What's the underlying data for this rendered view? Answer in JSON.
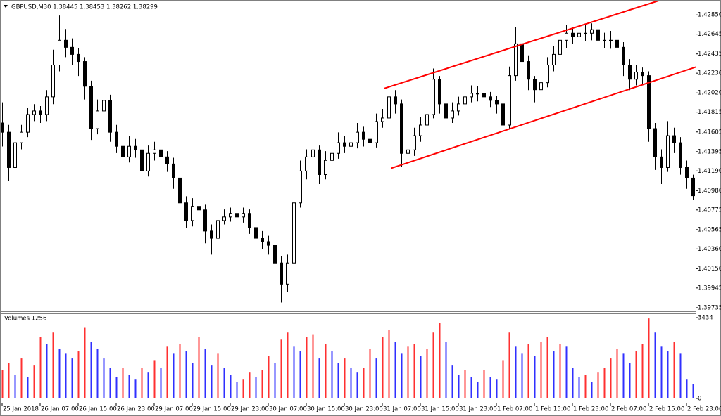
{
  "chart_data": [
    {
      "type": "candlestick",
      "title": "GBPUSD,M30  1.38445 1.38453 1.38262 1.38299",
      "ylim": [
        1.39697,
        1.43001
      ],
      "yticks": [
        {
          "value": 1.4285,
          "label": "1.42850"
        },
        1.42645,
        1.42435,
        {
          "value": 1.4223,
          "label": "1.42230"
        },
        {
          "value": 1.4202,
          "label": "1.42020"
        },
        1.41815,
        1.41605,
        1.41395,
        {
          "value": 1.4119,
          "label": "1.41190"
        },
        {
          "value": 1.4098,
          "label": "1.40980"
        },
        1.40775,
        1.40565,
        {
          "value": 1.4036,
          "label": "1.40360"
        },
        {
          "value": 1.4015,
          "label": "1.40150"
        },
        1.39945,
        1.39735
      ],
      "color": "#000000",
      "open": [
        1.417,
        1.41602,
        1.41226,
        1.4149,
        1.41602,
        1.4179,
        1.41828,
        1.4179,
        1.41978,
        1.42317,
        1.4258,
        1.42505,
        1.4243,
        1.42354,
        1.42091,
        1.4164,
        1.41828,
        1.41941,
        1.41602,
        1.41452,
        1.41339,
        1.41452,
        1.41414,
        1.41189,
        1.41377,
        1.41414,
        1.41339,
        1.41264,
        1.41114,
        1.4085,
        1.40662,
        1.40813,
        1.40775,
        1.4055,
        1.40474,
        1.40662,
        1.407,
        1.40738,
        1.407,
        1.40738,
        1.40587,
        1.40474,
        1.40437,
        1.40399,
        1.40211,
        1.39986,
        1.40211,
        1.4085,
        1.41189,
        1.41339,
        1.41414,
        1.41151,
        1.41302,
        1.41377,
        1.4149,
        1.41452,
        1.4149,
        1.41602,
        1.41527,
        1.4149,
        1.41715,
        1.41753,
        1.41978,
        1.41903,
        1.41377,
        1.41414,
        1.41565,
        1.41678,
        1.4179,
        1.42166,
        1.41903,
        1.41753,
        1.41828,
        1.41903,
        1.41978,
        1.42016,
        1.42016,
        1.41978,
        1.41941,
        1.41903,
        1.41678,
        1.42204,
        1.42542,
        1.42354,
        1.42166,
        1.42054,
        1.42129,
        1.42317,
        1.4243,
        1.4258,
        1.42655,
        1.42618,
        1.42655,
        1.42655,
        1.42693,
        1.4258,
        1.4258,
        1.4258,
        1.42505,
        1.42317,
        1.42166,
        1.42242,
        1.42204,
        1.4164,
        1.41339,
        1.41226,
        1.41565,
        1.4149,
        1.41226,
        1.41114
      ],
      "high": [
        1.4192,
        1.4168,
        1.4156,
        1.4168,
        1.4186,
        1.419,
        1.4188,
        1.4205,
        1.4248,
        1.42843,
        1.427,
        1.426,
        1.425,
        1.424,
        1.4215,
        1.4195,
        1.421,
        1.42,
        1.4168,
        1.4152,
        1.4156,
        1.4153,
        1.4148,
        1.4146,
        1.415,
        1.4148,
        1.414,
        1.4133,
        1.4118,
        1.4092,
        1.409,
        1.409,
        1.4083,
        1.4062,
        1.4074,
        1.4078,
        1.408,
        1.4079,
        1.408,
        1.4078,
        1.4064,
        1.4055,
        1.405,
        1.4045,
        1.4028,
        1.403,
        1.4092,
        1.413,
        1.4142,
        1.4152,
        1.4146,
        1.414,
        1.4146,
        1.416,
        1.4156,
        1.4158,
        1.417,
        1.4166,
        1.416,
        1.418,
        1.4185,
        1.421,
        1.4205,
        1.4195,
        1.415,
        1.4165,
        1.4176,
        1.419,
        1.4228,
        1.422,
        1.4196,
        1.4192,
        1.4198,
        1.4205,
        1.421,
        1.4209,
        1.4206,
        1.4203,
        1.4199,
        1.4195,
        1.423,
        1.4272,
        1.426,
        1.4242,
        1.422,
        1.4222,
        1.424,
        1.4252,
        1.4268,
        1.4274,
        1.4272,
        1.4273,
        1.4274,
        1.4276,
        1.4272,
        1.4266,
        1.4268,
        1.4265,
        1.4256,
        1.4238,
        1.4232,
        1.4229,
        1.4225,
        1.417,
        1.4142,
        1.4172,
        1.4165,
        1.4155,
        1.413,
        1.4115
      ],
      "low": [
        1.4145,
        1.4108,
        1.4115,
        1.4142,
        1.4155,
        1.4172,
        1.417,
        1.4172,
        1.419,
        1.4225,
        1.424,
        1.4232,
        1.422,
        1.4195,
        1.4152,
        1.4158,
        1.4176,
        1.415,
        1.4138,
        1.4125,
        1.4128,
        1.4133,
        1.411,
        1.4113,
        1.413,
        1.4125,
        1.4118,
        1.41,
        1.4078,
        1.4058,
        1.406,
        1.407,
        1.4042,
        1.403,
        1.4042,
        1.4062,
        1.4065,
        1.4064,
        1.4064,
        1.4052,
        1.404,
        1.4036,
        1.403,
        1.401,
        1.3979,
        1.399,
        1.4015,
        1.408,
        1.411,
        1.4128,
        1.4105,
        1.411,
        1.4125,
        1.4132,
        1.4138,
        1.414,
        1.4143,
        1.4145,
        1.4138,
        1.4144,
        1.4165,
        1.417,
        1.418,
        1.4123,
        1.4128,
        1.4135,
        1.415,
        1.416,
        1.4175,
        1.418,
        1.416,
        1.417,
        1.4178,
        1.4185,
        1.4192,
        1.4193,
        1.419,
        1.4187,
        1.418,
        1.416,
        1.4164,
        1.4215,
        1.4225,
        1.4205,
        1.4192,
        1.4198,
        1.4208,
        1.4225,
        1.4238,
        1.425,
        1.4254,
        1.4256,
        1.4257,
        1.4258,
        1.425,
        1.425,
        1.4249,
        1.4242,
        1.422,
        1.4205,
        1.421,
        1.421,
        1.415,
        1.412,
        1.4105,
        1.4118,
        1.4138,
        1.4115,
        1.41,
        1.4088
      ],
      "close": [
        1.41602,
        1.41226,
        1.4149,
        1.41602,
        1.4179,
        1.41828,
        1.4179,
        1.41978,
        1.42317,
        1.4258,
        1.42505,
        1.4243,
        1.42354,
        1.42091,
        1.4164,
        1.41828,
        1.41941,
        1.41602,
        1.41452,
        1.41339,
        1.41452,
        1.41414,
        1.41189,
        1.41377,
        1.41414,
        1.41339,
        1.41264,
        1.41114,
        1.4085,
        1.40662,
        1.40813,
        1.40775,
        1.4055,
        1.40474,
        1.40662,
        1.407,
        1.40738,
        1.407,
        1.40738,
        1.40587,
        1.40474,
        1.40437,
        1.40399,
        1.40211,
        1.39986,
        1.40211,
        1.4085,
        1.41189,
        1.41339,
        1.41414,
        1.41151,
        1.41302,
        1.41377,
        1.4149,
        1.41452,
        1.4149,
        1.41602,
        1.41527,
        1.4149,
        1.41715,
        1.41753,
        1.41978,
        1.41903,
        1.41377,
        1.41414,
        1.41565,
        1.41678,
        1.4179,
        1.42166,
        1.41903,
        1.41753,
        1.41828,
        1.41903,
        1.41978,
        1.42016,
        1.42016,
        1.41978,
        1.41941,
        1.41903,
        1.41678,
        1.42204,
        1.42542,
        1.42354,
        1.42166,
        1.42054,
        1.42129,
        1.42317,
        1.4243,
        1.4258,
        1.42655,
        1.42618,
        1.42655,
        1.42655,
        1.42693,
        1.4258,
        1.4258,
        1.4258,
        1.42505,
        1.42317,
        1.42166,
        1.42242,
        1.42204,
        1.4164,
        1.41339,
        1.41226,
        1.41565,
        1.4149,
        1.41226,
        1.41114,
        1.40926
      ],
      "trendlines": [
        {
          "x": [
            60.3,
            103.6
          ],
          "y": [
            1.42068,
            1.43001
          ],
          "color": "#ff0000"
        },
        {
          "x": [
            61.4,
            112.1
          ],
          "y": [
            1.41219,
            1.42354
          ],
          "color": "#ff0000"
        }
      ]
    },
    {
      "type": "volume",
      "title": "Volumes 1256",
      "categories": [
        "25 Jan 2018",
        null,
        null,
        null,
        null,
        null,
        "26 Jan 07:00",
        null,
        null,
        null,
        null,
        null,
        "26 Jan 15:00",
        null,
        null,
        null,
        null,
        null,
        "26 Jan 23:00",
        null,
        null,
        null,
        null,
        null,
        "29 Jan 07:00",
        null,
        null,
        null,
        null,
        null,
        "29 Jan 15:00",
        null,
        null,
        null,
        null,
        null,
        "29 Jan 23:00",
        null,
        null,
        null,
        null,
        null,
        "30 Jan 07:00",
        null,
        null,
        null,
        null,
        null,
        "30 Jan 15:00",
        null,
        null,
        null,
        null,
        null,
        "30 Jan 23:00",
        null,
        null,
        null,
        null,
        null,
        "31 Jan 07:00",
        null,
        null,
        null,
        null,
        null,
        "31 Jan 15:00",
        null,
        null,
        null,
        null,
        null,
        "31 Jan 23:00",
        null,
        null,
        null,
        null,
        null,
        "1 Feb 07:00",
        null,
        null,
        null,
        null,
        null,
        "1 Feb 15:00",
        null,
        null,
        null,
        null,
        null,
        "1 Feb 23:00",
        null,
        null,
        null,
        null,
        null,
        "2 Feb 07:00",
        null,
        null,
        null,
        null,
        null,
        "2 Feb 15:00",
        null,
        null,
        null,
        null,
        null,
        "2 Feb 23:00",
        null
      ],
      "values": [
        1200,
        1500,
        1000,
        1700,
        900,
        1400,
        2600,
        2300,
        2800,
        2100,
        1900,
        1700,
        2000,
        3000,
        2400,
        2100,
        1700,
        1300,
        900,
        1300,
        1000,
        800,
        1300,
        1100,
        1600,
        1300,
        2200,
        1900,
        2300,
        2000,
        1500,
        2600,
        2100,
        1400,
        1900,
        1300,
        1000,
        700,
        800,
        1100,
        900,
        1200,
        1800,
        1500,
        2500,
        2800,
        2200,
        2000,
        2600,
        2700,
        1700,
        2300,
        2000,
        1500,
        1700,
        1300,
        1100,
        1300,
        2100,
        1700,
        2600,
        2900,
        2400,
        1900,
        2200,
        2300,
        1800,
        2100,
        2800,
        3200,
        2400,
        1400,
        1000,
        1200,
        900,
        700,
        1200,
        900,
        800,
        1600,
        2800,
        2200,
        1900,
        2300,
        1800,
        2400,
        2600,
        2000,
        2300,
        2200,
        1300,
        900,
        1000,
        700,
        1100,
        1300,
        1700,
        2100,
        1900,
        1500,
        2000,
        2300,
        3400,
        2800,
        2200,
        2000,
        2400,
        1900,
        800,
        600
      ],
      "ylim": [
        -149,
        3583
      ],
      "yticks": [
        3434,
        0
      ],
      "rising_color": "#ff3030",
      "falling_color": "#3030ff"
    }
  ]
}
